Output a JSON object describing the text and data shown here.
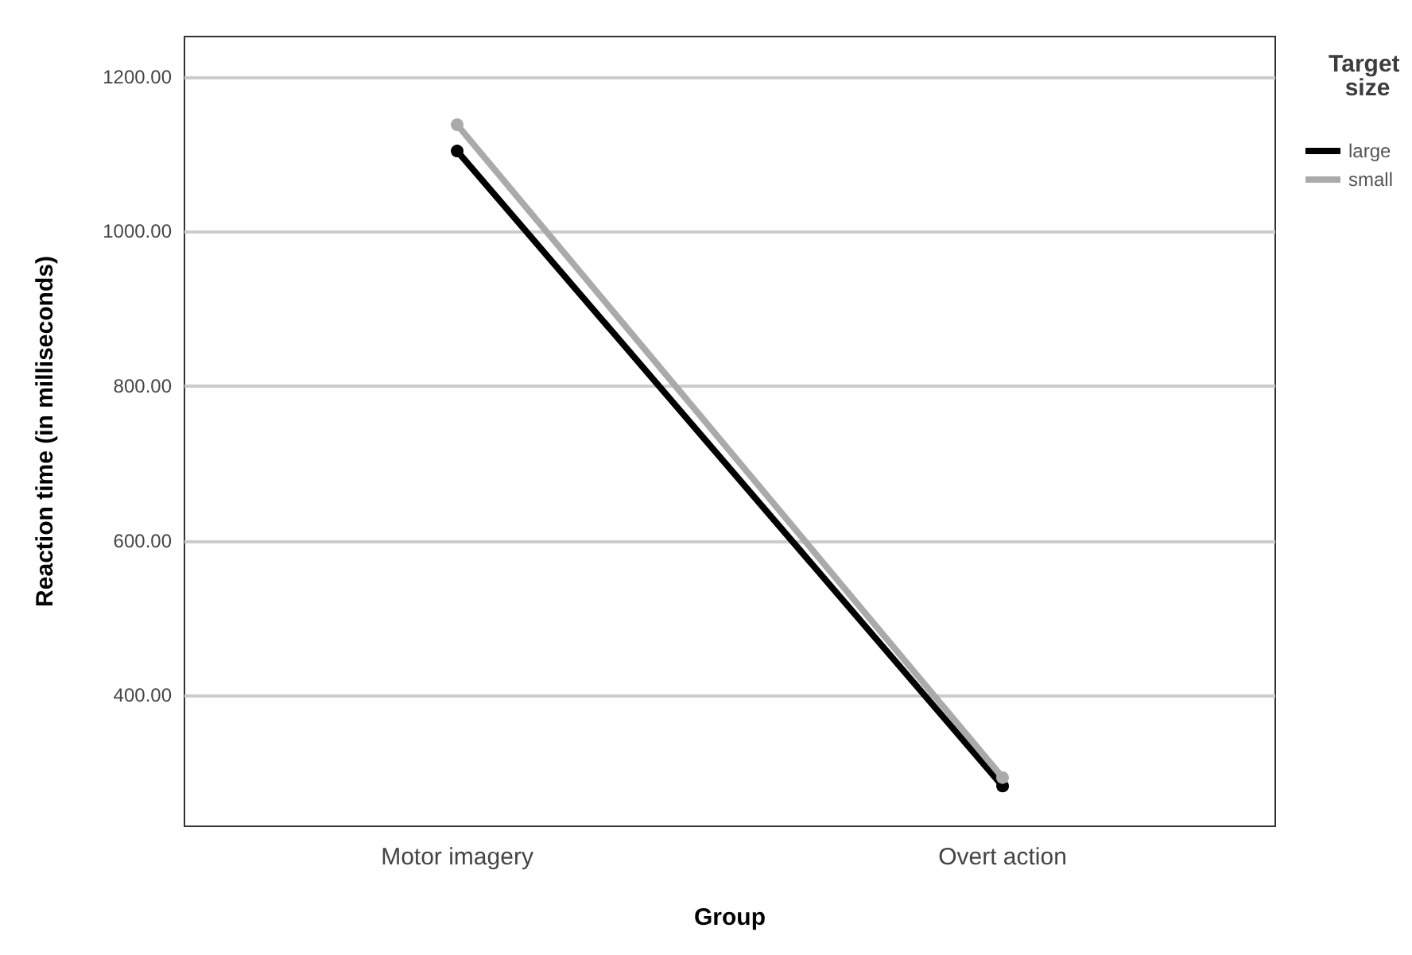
{
  "chart_data": {
    "type": "line",
    "xlabel": "Group",
    "ylabel": "Reaction time (in milliseconds)",
    "legend_title": "Target size",
    "categories": [
      "Motor imagery",
      "Overt action"
    ],
    "series": [
      {
        "name": "large",
        "color": "#000000",
        "values": [
          1104,
          283
        ]
      },
      {
        "name": "small",
        "color": "#aaaaaa",
        "values": [
          1138,
          294
        ]
      }
    ],
    "ylim": [
      231,
      1252
    ],
    "yticks": [
      {
        "value": 400,
        "label": "400.00"
      },
      {
        "value": 600,
        "label": "600.00"
      },
      {
        "value": 800,
        "label": "800.00"
      },
      {
        "value": 1000,
        "label": "1000.00"
      },
      {
        "value": 1200,
        "label": "1200.00"
      }
    ],
    "grid": "y",
    "legend": "top right",
    "marker": "circle",
    "line_style": "solid"
  }
}
